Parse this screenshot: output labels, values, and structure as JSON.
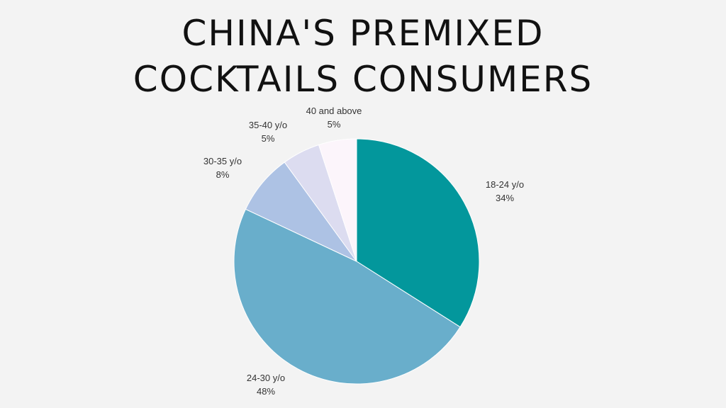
{
  "title": {
    "line1": "CHINA'S PREMIXED",
    "line2": "COCKTAILS CONSUMERS"
  },
  "colors": {
    "background": "#f3f3f3",
    "title_text": "#111111",
    "label_text": "#333333",
    "slice_18_24": "#03979c",
    "slice_24_30": "#69aecb",
    "slice_30_35": "#adc2e4",
    "slice_35_40": "#dcdcf0",
    "slice_40_above": "#fcf5fb"
  },
  "chart_data": {
    "type": "pie",
    "title": "CHINA'S PREMIXED COCKTAILS CONSUMERS",
    "start_angle": "12 o'clock",
    "direction": "clockwise",
    "slices": [
      {
        "label": "18-24 y/o",
        "value": 34,
        "value_label": "34%",
        "color": "#03979c"
      },
      {
        "label": "24-30 y/o",
        "value": 48,
        "value_label": "48%",
        "color": "#69aecb"
      },
      {
        "label": "30-35 y/o",
        "value": 8,
        "value_label": "8%",
        "color": "#adc2e4"
      },
      {
        "label": "35-40 y/o",
        "value": 5,
        "value_label": "5%",
        "color": "#dcdcf0"
      },
      {
        "label": "40 and above",
        "value": 5,
        "value_label": "5%",
        "color": "#fcf5fb"
      }
    ]
  }
}
